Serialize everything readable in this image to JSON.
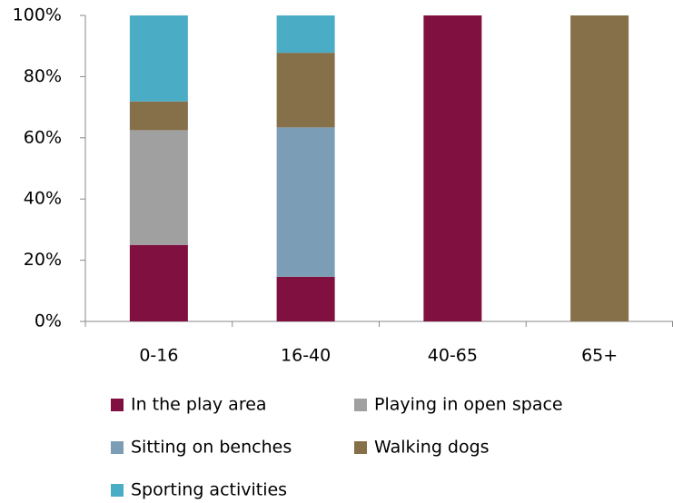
{
  "chart_data": {
    "type": "stacked_bar",
    "categories": [
      "0-16",
      "16-40",
      "40-65",
      "65+"
    ],
    "series": [
      {
        "name": "In the play area",
        "color": "#7f1040",
        "values": [
          25,
          14.6,
          100,
          0
        ]
      },
      {
        "name": "Playing in open space",
        "color": "#a0a0a0",
        "values": [
          37.5,
          0,
          0,
          0
        ]
      },
      {
        "name": "Sitting on benches",
        "color": "#7b9db5",
        "values": [
          0,
          48.8,
          0,
          0
        ]
      },
      {
        "name": "Walking dogs",
        "color": "#86704a",
        "values": [
          9.4,
          24.4,
          0,
          100
        ]
      },
      {
        "name": "Sporting activities",
        "color": "#4bacc6",
        "values": [
          28.1,
          12.2,
          0,
          0
        ]
      }
    ],
    "ylim": [
      0,
      100
    ],
    "yticks": [
      {
        "value": 0,
        "label": "0%"
      },
      {
        "value": 20,
        "label": "20%"
      },
      {
        "value": 40,
        "label": "40%"
      },
      {
        "value": 60,
        "label": "60%"
      },
      {
        "value": 80,
        "label": "80%"
      },
      {
        "value": 100,
        "label": "100%"
      }
    ],
    "legend": "bottom"
  }
}
